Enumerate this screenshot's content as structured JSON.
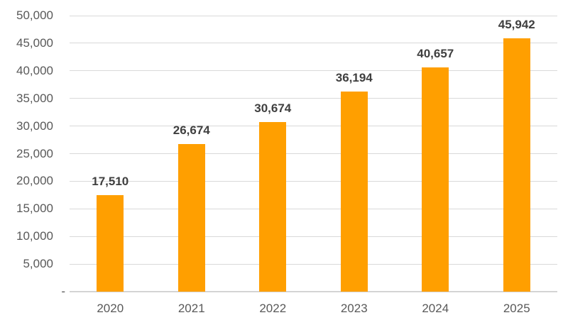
{
  "chart_data": {
    "type": "bar",
    "title": "",
    "xlabel": "",
    "ylabel": "",
    "categories": [
      "2020",
      "2021",
      "2022",
      "2023",
      "2024",
      "2025"
    ],
    "values": [
      17510,
      26674,
      30674,
      36194,
      40657,
      45942
    ],
    "value_labels": [
      "17,510",
      "26,674",
      "30,674",
      "36,194",
      "40,657",
      "45,942"
    ],
    "ylim": [
      0,
      50000
    ],
    "ytick_step": 5000,
    "ytick_labels": [
      "-",
      "5,000",
      "10,000",
      "15,000",
      "20,000",
      "25,000",
      "30,000",
      "35,000",
      "40,000",
      "45,000",
      "50,000"
    ],
    "grid": true,
    "legend_position": "none",
    "colors": {
      "bar": "#FF9F00",
      "gridline": "#D9D9D9",
      "axis_line": "#D4D4D4",
      "axis_label_text": "#595959",
      "data_label_text": "#3F3F3F",
      "background": "#FFFFFF"
    }
  }
}
